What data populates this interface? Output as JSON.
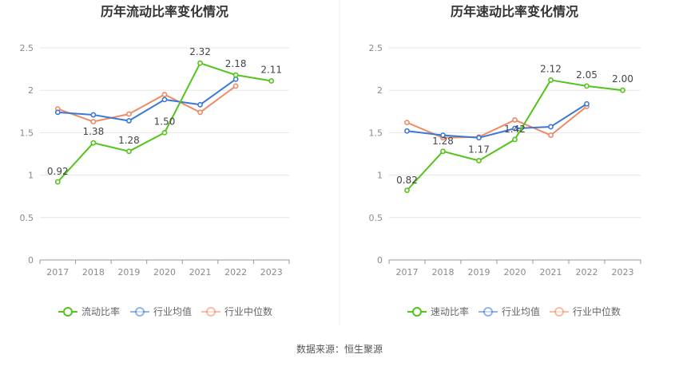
{
  "footer": "数据来源：恒生聚源",
  "chart_data": [
    {
      "type": "line",
      "title": "历年流动比率变化情况",
      "categories": [
        "2017",
        "2018",
        "2019",
        "2020",
        "2021",
        "2022",
        "2023"
      ],
      "ylim": [
        0,
        2.5
      ],
      "yticks": [
        "0",
        "0.5",
        "1",
        "1.5",
        "2",
        "2.5"
      ],
      "grid": true,
      "legend_position": "bottom",
      "series": [
        {
          "name": "流动比率",
          "color": "#52c41a",
          "values": [
            0.92,
            1.38,
            1.28,
            1.5,
            2.32,
            2.18,
            2.11
          ],
          "labels": [
            "0.92",
            "1.38",
            "1.28",
            "1.50",
            "2.32",
            "2.18",
            "2.11"
          ]
        },
        {
          "name": "行业均值",
          "color": "#3b78d8",
          "values": [
            1.74,
            1.71,
            1.64,
            1.89,
            1.83,
            2.13,
            null
          ]
        },
        {
          "name": "行业中位数",
          "color": "#f08a63",
          "values": [
            1.78,
            1.63,
            1.72,
            1.95,
            1.74,
            2.05,
            null
          ]
        }
      ]
    },
    {
      "type": "line",
      "title": "历年速动比率变化情况",
      "categories": [
        "2017",
        "2018",
        "2019",
        "2020",
        "2021",
        "2022",
        "2023"
      ],
      "ylim": [
        0,
        2.5
      ],
      "yticks": [
        "0",
        "0.5",
        "1",
        "1.5",
        "2",
        "2.5"
      ],
      "grid": true,
      "legend_position": "bottom",
      "series": [
        {
          "name": "速动比率",
          "color": "#52c41a",
          "values": [
            0.82,
            1.28,
            1.17,
            1.42,
            2.12,
            2.05,
            2.0
          ],
          "labels": [
            "0.82",
            "1.28",
            "1.17",
            "1.42",
            "2.12",
            "2.05",
            "2.00"
          ]
        },
        {
          "name": "行业均值",
          "color": "#3b78d8",
          "values": [
            1.52,
            1.47,
            1.44,
            1.55,
            1.57,
            1.84,
            null
          ]
        },
        {
          "name": "行业中位数",
          "color": "#f08a63",
          "values": [
            1.62,
            1.44,
            1.45,
            1.65,
            1.47,
            1.81,
            null
          ]
        }
      ]
    }
  ]
}
